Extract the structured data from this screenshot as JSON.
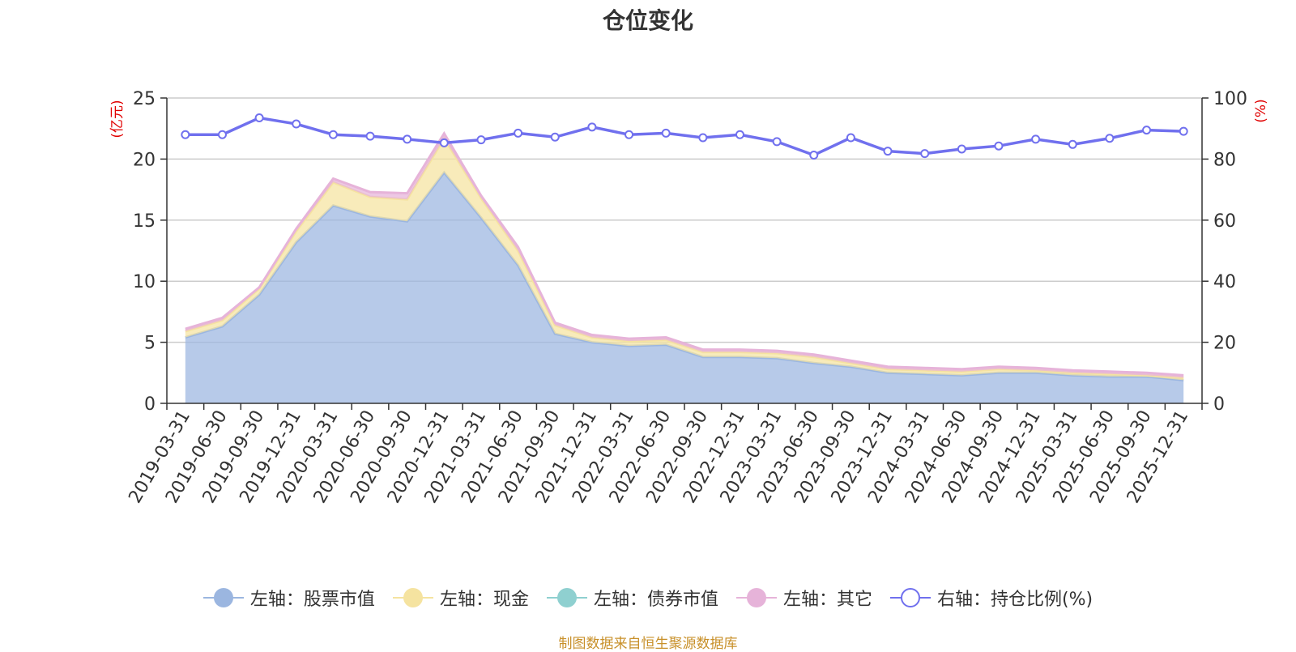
{
  "chart_data": {
    "type": "area",
    "title": "仓位变化",
    "ylabel_left": "(亿元)",
    "ylabel_right": "(%)",
    "ylim_left": [
      0,
      25
    ],
    "ylim_right": [
      0,
      100
    ],
    "yticks_left": [
      0,
      5,
      10,
      15,
      20,
      25
    ],
    "yticks_right": [
      0,
      20,
      40,
      60,
      80,
      100
    ],
    "grid": true,
    "stacked": true,
    "categories": [
      "2019-03-31",
      "2019-06-30",
      "2019-09-30",
      "2019-12-31",
      "2020-03-31",
      "2020-06-30",
      "2020-09-30",
      "2020-12-31",
      "2021-03-31",
      "2021-06-30",
      "2021-09-30",
      "2021-12-31",
      "2022-03-31",
      "2022-06-30",
      "2022-09-30",
      "2022-12-31",
      "2023-03-31",
      "2023-06-30",
      "2023-09-30",
      "2023-12-31",
      "2024-03-31",
      "2024-06-30",
      "2024-09-30",
      "2024-12-31",
      "2025-03-31",
      "2025-06-30",
      "2025-09-30",
      "2025-12-31"
    ],
    "series": [
      {
        "name": "左轴：股票市值",
        "axis": "left",
        "color": "#9bb6e0",
        "values": [
          5.4,
          6.3,
          8.9,
          13.2,
          16.2,
          15.3,
          14.9,
          18.9,
          15.2,
          11.3,
          5.7,
          5.0,
          4.7,
          4.8,
          3.8,
          3.8,
          3.7,
          3.3,
          3.0,
          2.5,
          2.4,
          2.3,
          2.5,
          2.5,
          2.3,
          2.2,
          2.2,
          1.9
        ]
      },
      {
        "name": "左轴：现金",
        "axis": "left",
        "color": "#f5e3a0",
        "values": [
          0.5,
          0.5,
          0.5,
          0.9,
          1.9,
          1.6,
          1.8,
          2.8,
          1.6,
          1.2,
          0.7,
          0.4,
          0.4,
          0.4,
          0.4,
          0.4,
          0.4,
          0.5,
          0.3,
          0.3,
          0.3,
          0.3,
          0.3,
          0.2,
          0.2,
          0.2,
          0.1,
          0.2
        ]
      },
      {
        "name": "左轴：债券市值",
        "axis": "left",
        "color": "#8fd0d0",
        "values": [
          0,
          0,
          0,
          0,
          0,
          0,
          0,
          0,
          0,
          0,
          0,
          0,
          0,
          0,
          0,
          0,
          0,
          0,
          0,
          0,
          0,
          0,
          0,
          0,
          0,
          0,
          0,
          0
        ]
      },
      {
        "name": "左轴：其它",
        "axis": "left",
        "color": "#e6b3d9",
        "values": [
          0.2,
          0.2,
          0.1,
          0.2,
          0.3,
          0.4,
          0.5,
          0.4,
          0.2,
          0.3,
          0.2,
          0.2,
          0.2,
          0.2,
          0.2,
          0.2,
          0.2,
          0.2,
          0.2,
          0.2,
          0.2,
          0.2,
          0.2,
          0.2,
          0.2,
          0.2,
          0.2,
          0.2
        ]
      },
      {
        "name": "右轴：持仓比例(%)",
        "axis": "right",
        "color": "#7070ee",
        "values": [
          88.0,
          88.0,
          93.5,
          91.5,
          88.0,
          87.5,
          86.5,
          85.3,
          86.3,
          88.5,
          87.2,
          90.5,
          88.0,
          88.5,
          87.0,
          88.0,
          85.7,
          81.3,
          87.0,
          82.6,
          81.8,
          83.3,
          84.3,
          86.5,
          84.8,
          86.8,
          89.5,
          89.1
        ]
      }
    ]
  },
  "source_text": "制图数据来自恒生聚源数据库"
}
